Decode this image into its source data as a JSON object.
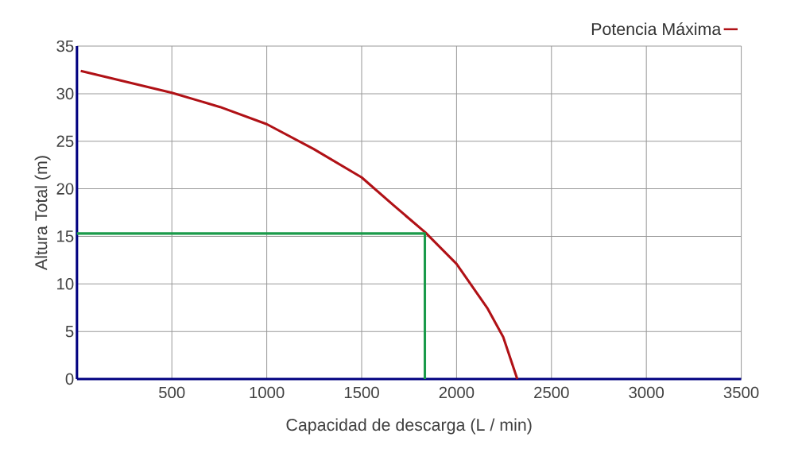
{
  "chart_data": {
    "type": "line",
    "xlabel": "Capacidad de descarga  (L / min)",
    "ylabel": "Altura Total (m)",
    "xlim": [
      0,
      3500
    ],
    "ylim": [
      0,
      35
    ],
    "xticks": [
      500,
      1000,
      1500,
      2000,
      2500,
      3000,
      3500
    ],
    "yticks": [
      0,
      5,
      10,
      15,
      20,
      25,
      30,
      35
    ],
    "grid": true,
    "legend": "top right",
    "marker": "none",
    "line_style": "solid",
    "series": [
      {
        "name": "Potencia Máxima",
        "color": "#b01116",
        "x": [
          20,
          500,
          754,
          1000,
          1246,
          1500,
          1672,
          1836,
          2000,
          2164,
          2246,
          2320
        ],
        "values": [
          32.4,
          30.1,
          28.6,
          26.8,
          24.2,
          21.2,
          18.2,
          15.4,
          12.1,
          7.4,
          4.4,
          0
        ]
      },
      {
        "color": "#1a9a4a",
        "x": [
          0,
          1833,
          1833
        ],
        "values": [
          15.3,
          15.3,
          0
        ]
      }
    ]
  }
}
